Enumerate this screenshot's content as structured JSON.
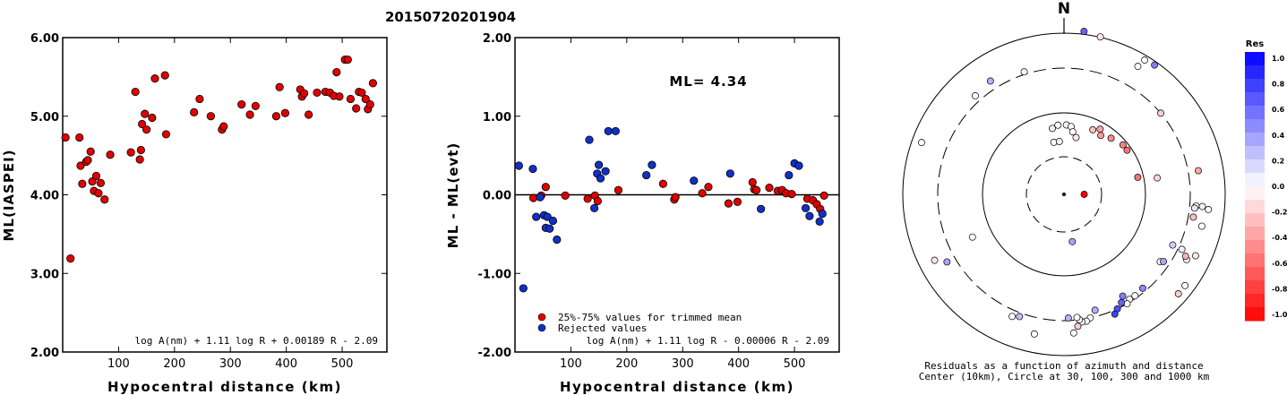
{
  "title": "20150720201904",
  "colors": {
    "red": "#e00000",
    "blue": "#1030c8",
    "frame": "#000000"
  },
  "chart_data": [
    {
      "type": "scatter",
      "id": "ml-vs-distance",
      "xlabel": "Hypocentral distance (km)",
      "ylabel": "ML(IASPEI)",
      "xlim": [
        0,
        580
      ],
      "ylim": [
        2.0,
        6.0
      ],
      "x_ticks": [
        100,
        200,
        300,
        400,
        500
      ],
      "y_ticks": [
        "2.00",
        "3.00",
        "4.00",
        "5.00",
        "6.00"
      ],
      "formula": "log A(nm) + 1.11 log R + 0.00189 R - 2.09",
      "series": [
        {
          "color": "red",
          "points": [
            [
              5,
              4.73
            ],
            [
              14,
              3.19
            ],
            [
              30,
              4.73
            ],
            [
              32,
              4.37
            ],
            [
              35,
              4.14
            ],
            [
              42,
              4.42
            ],
            [
              45,
              4.44
            ],
            [
              50,
              4.55
            ],
            [
              53,
              4.17
            ],
            [
              56,
              4.05
            ],
            [
              60,
              4.24
            ],
            [
              64,
              4.02
            ],
            [
              68,
              4.15
            ],
            [
              75,
              3.94
            ],
            [
              85,
              4.51
            ],
            [
              122,
              4.54
            ],
            [
              130,
              5.31
            ],
            [
              138,
              4.45
            ],
            [
              140,
              4.57
            ],
            [
              142,
              4.9
            ],
            [
              147,
              5.03
            ],
            [
              150,
              4.83
            ],
            [
              160,
              4.98
            ],
            [
              165,
              5.48
            ],
            [
              183,
              5.52
            ],
            [
              185,
              4.77
            ],
            [
              235,
              5.05
            ],
            [
              245,
              5.22
            ],
            [
              265,
              5.0
            ],
            [
              285,
              4.83
            ],
            [
              288,
              4.87
            ],
            [
              320,
              5.15
            ],
            [
              335,
              5.02
            ],
            [
              345,
              5.13
            ],
            [
              382,
              5.0
            ],
            [
              388,
              5.37
            ],
            [
              398,
              5.04
            ],
            [
              425,
              5.34
            ],
            [
              428,
              5.25
            ],
            [
              432,
              5.29
            ],
            [
              440,
              5.02
            ],
            [
              455,
              5.3
            ],
            [
              470,
              5.31
            ],
            [
              478,
              5.3
            ],
            [
              485,
              5.26
            ],
            [
              490,
              5.56
            ],
            [
              495,
              5.25
            ],
            [
              505,
              5.72
            ],
            [
              510,
              5.72
            ],
            [
              515,
              5.22
            ],
            [
              525,
              5.1
            ],
            [
              530,
              5.31
            ],
            [
              535,
              5.3
            ],
            [
              542,
              5.22
            ],
            [
              546,
              5.09
            ],
            [
              550,
              5.15
            ],
            [
              555,
              5.42
            ]
          ]
        }
      ]
    },
    {
      "type": "scatter",
      "id": "residual-vs-distance",
      "xlabel": "Hypocentral distance (km)",
      "ylabel": "ML - ML(evt)",
      "xlim": [
        0,
        580
      ],
      "ylim": [
        -2.0,
        2.0
      ],
      "x_ticks": [
        100,
        200,
        300,
        400,
        500
      ],
      "y_ticks": [
        "-2.00",
        "-1.00",
        "0.00",
        "1.00",
        "2.00"
      ],
      "annotation": "ML= 4.34",
      "formula": "log A(nm) + 1.11 log R - 0.00006 R - 2.09",
      "legend": [
        {
          "label": "25%-75% values for trimmed mean",
          "color": "red"
        },
        {
          "label": "Rejected values",
          "color": "blue"
        }
      ],
      "series": [
        {
          "name": "25%-75% values for trimmed mean",
          "color": "red",
          "points": [
            [
              33,
              -0.04
            ],
            [
              47,
              -0.01
            ],
            [
              55,
              0.1
            ],
            [
              90,
              -0.01
            ],
            [
              130,
              -0.05
            ],
            [
              143,
              -0.01
            ],
            [
              148,
              -0.08
            ],
            [
              185,
              0.06
            ],
            [
              265,
              0.14
            ],
            [
              285,
              -0.06
            ],
            [
              287,
              -0.03
            ],
            [
              335,
              0.02
            ],
            [
              346,
              0.1
            ],
            [
              382,
              -0.11
            ],
            [
              398,
              -0.09
            ],
            [
              425,
              0.16
            ],
            [
              428,
              0.07
            ],
            [
              432,
              0.06
            ],
            [
              455,
              0.09
            ],
            [
              470,
              0.05
            ],
            [
              478,
              0.06
            ],
            [
              485,
              0.02
            ],
            [
              495,
              0.01
            ],
            [
              523,
              -0.05
            ],
            [
              533,
              -0.07
            ],
            [
              540,
              -0.12
            ],
            [
              546,
              -0.18
            ],
            [
              553,
              -0.01
            ]
          ]
        },
        {
          "name": "Rejected values",
          "color": "blue",
          "points": [
            [
              7,
              0.37
            ],
            [
              15,
              -1.19
            ],
            [
              32,
              0.33
            ],
            [
              38,
              -0.28
            ],
            [
              45,
              -0.03
            ],
            [
              52,
              -0.26
            ],
            [
              55,
              -0.42
            ],
            [
              58,
              -0.28
            ],
            [
              62,
              -0.43
            ],
            [
              68,
              -0.33
            ],
            [
              75,
              -0.57
            ],
            [
              133,
              0.7
            ],
            [
              142,
              -0.17
            ],
            [
              147,
              0.27
            ],
            [
              150,
              0.38
            ],
            [
              153,
              0.21
            ],
            [
              162,
              0.3
            ],
            [
              167,
              0.81
            ],
            [
              180,
              0.81
            ],
            [
              235,
              0.25
            ],
            [
              245,
              0.38
            ],
            [
              320,
              0.18
            ],
            [
              385,
              0.27
            ],
            [
              440,
              -0.18
            ],
            [
              490,
              0.25
            ],
            [
              500,
              0.4
            ],
            [
              508,
              0.37
            ],
            [
              520,
              -0.17
            ],
            [
              527,
              -0.27
            ],
            [
              545,
              -0.34
            ],
            [
              550,
              -0.24
            ]
          ]
        }
      ]
    },
    {
      "type": "scatter",
      "id": "azimuth-polar",
      "north_label": "N",
      "caption": [
        "Residuals as a function of azimuth and distance",
        "Center (10km), Circle at 30, 100, 300 and 1000 km"
      ],
      "colorbar": {
        "label": "Res",
        "ticks": [
          "1.0",
          "0.8",
          "0.6",
          "0.4",
          "0.2",
          "0.0",
          "-0.2",
          "-0.4",
          "-0.6",
          "-0.8",
          "-1.0"
        ],
        "range": [
          -1.0,
          1.0
        ]
      },
      "epicenter": {
        "r": 0.0,
        "az": 0
      },
      "points": [
        {
          "r": 0.16,
          "az": 90,
          "res": -1.0
        },
        {
          "r": 0.53,
          "az": 350,
          "res": 0.05
        },
        {
          "r": 0.55,
          "az": 355,
          "res": 0.0
        },
        {
          "r": 0.55,
          "az": 2,
          "res": 0.0
        },
        {
          "r": 0.54,
          "az": 6,
          "res": 0.0
        },
        {
          "r": 0.5,
          "az": 8,
          "res": 0.0
        },
        {
          "r": 0.42,
          "az": 349,
          "res": 0.0
        },
        {
          "r": 0.42,
          "az": 355,
          "res": 0.05
        },
        {
          "r": 0.46,
          "az": 12,
          "res": -0.1
        },
        {
          "r": 0.56,
          "az": 24,
          "res": -0.25
        },
        {
          "r": 0.59,
          "az": 29,
          "res": -0.35
        },
        {
          "r": 0.55,
          "az": 32,
          "res": -0.4
        },
        {
          "r": 0.58,
          "az": 40,
          "res": -0.45
        },
        {
          "r": 0.61,
          "az": 50,
          "res": -0.5
        },
        {
          "r": 0.61,
          "az": 55,
          "res": -0.55
        },
        {
          "r": 0.6,
          "az": 77,
          "res": -0.55
        },
        {
          "r": 0.38,
          "az": 170,
          "res": 0.35
        },
        {
          "r": 0.75,
          "az": 80,
          "res": -0.15
        },
        {
          "r": 1.0,
          "az": 50,
          "res": -0.2
        },
        {
          "r": 1.08,
          "az": 80,
          "res": -0.35
        },
        {
          "r": 1.05,
          "az": 95,
          "res": 0.0
        },
        {
          "r": 1.04,
          "az": 96,
          "res": 0.1
        },
        {
          "r": 1.1,
          "az": 95,
          "res": 0.05
        },
        {
          "r": 1.15,
          "az": 96,
          "res": 0.0
        },
        {
          "r": 1.04,
          "az": 100,
          "res": -0.25
        },
        {
          "r": 1.12,
          "az": 103,
          "res": 0.0
        },
        {
          "r": 0.95,
          "az": 115,
          "res": 0.2
        },
        {
          "r": 1.03,
          "az": 115,
          "res": 0.05
        },
        {
          "r": 1.15,
          "az": 115,
          "res": -0.1
        },
        {
          "r": 1.1,
          "az": 118,
          "res": 0.0
        },
        {
          "r": 1.08,
          "az": 117,
          "res": -0.3
        },
        {
          "r": 0.93,
          "az": 125,
          "res": 0.0
        },
        {
          "r": 0.95,
          "az": 124,
          "res": 0.35
        },
        {
          "r": 1.2,
          "az": 127,
          "res": 0.0
        },
        {
          "r": 1.2,
          "az": 131,
          "res": -0.2
        },
        {
          "r": 0.98,
          "az": 145,
          "res": 0.0
        },
        {
          "r": 0.98,
          "az": 148,
          "res": -0.05
        },
        {
          "r": 1.0,
          "az": 150,
          "res": 0.0
        },
        {
          "r": 0.93,
          "az": 150,
          "res": 0.5
        },
        {
          "r": 0.97,
          "az": 152,
          "res": 0.6
        },
        {
          "r": 1.0,
          "az": 155,
          "res": 0.7
        },
        {
          "r": 1.03,
          "az": 157,
          "res": 0.75
        },
        {
          "r": 0.97,
          "az": 140,
          "res": 0.45
        },
        {
          "r": 1.0,
          "az": 168,
          "res": 0.0
        },
        {
          "r": 0.95,
          "az": 165,
          "res": 0.3
        },
        {
          "r": 1.02,
          "az": 170,
          "res": 0.0
        },
        {
          "r": 1.02,
          "az": 172,
          "res": 0.0
        },
        {
          "r": 1.0,
          "az": 173,
          "res": 0.0
        },
        {
          "r": 0.98,
          "az": 174,
          "res": 0.0
        },
        {
          "r": 1.05,
          "az": 174,
          "res": -0.2
        },
        {
          "r": 1.1,
          "az": 176,
          "res": 0.0
        },
        {
          "r": 0.98,
          "az": 178,
          "res": 0.3
        },
        {
          "r": 1.13,
          "az": 192,
          "res": 0.0
        },
        {
          "r": 1.03,
          "az": 200,
          "res": 0.25
        },
        {
          "r": 1.05,
          "az": 203,
          "res": 0.0
        },
        {
          "r": 1.07,
          "az": 240,
          "res": 0.35
        },
        {
          "r": 1.15,
          "az": 243,
          "res": -0.1
        },
        {
          "r": 0.8,
          "az": 245,
          "res": 0.0
        },
        {
          "r": 1.2,
          "az": 290,
          "res": 0.0
        },
        {
          "r": 1.05,
          "az": 318,
          "res": 0.0
        },
        {
          "r": 1.07,
          "az": 327,
          "res": 0.3
        },
        {
          "r": 1.02,
          "az": 342,
          "res": 0.0
        },
        {
          "r": 1.3,
          "az": 7,
          "res": 0.6
        },
        {
          "r": 1.28,
          "az": 13,
          "res": -0.1
        },
        {
          "r": 1.17,
          "az": 30,
          "res": 0.0
        },
        {
          "r": 1.24,
          "az": 31,
          "res": 0.0
        },
        {
          "r": 1.25,
          "az": 35,
          "res": 0.5
        }
      ]
    }
  ]
}
